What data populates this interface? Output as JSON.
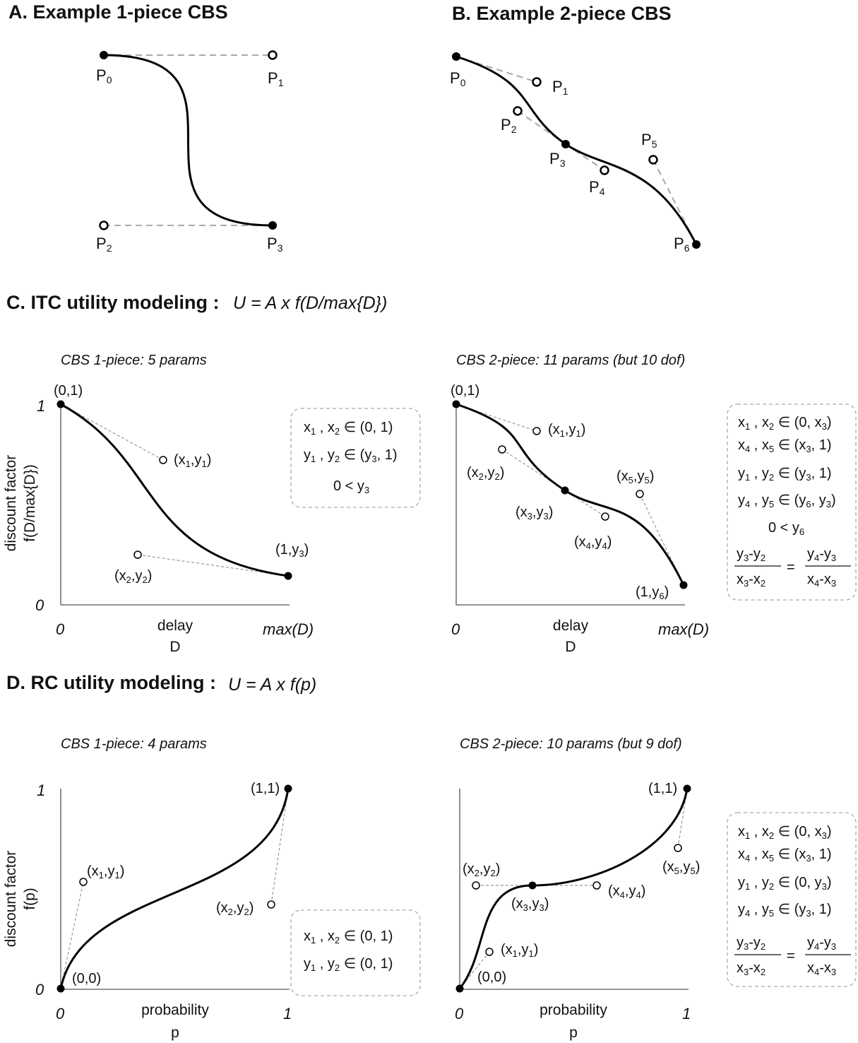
{
  "panelA": {
    "title": "A. Example 1-piece CBS",
    "points": [
      {
        "name": "P0",
        "base": "P",
        "sub": "0"
      },
      {
        "name": "P1",
        "base": "P",
        "sub": "1"
      },
      {
        "name": "P2",
        "base": "P",
        "sub": "2"
      },
      {
        "name": "P3",
        "base": "P",
        "sub": "3"
      }
    ]
  },
  "panelB": {
    "title": "B. Example 2-piece CBS",
    "points": [
      {
        "name": "P0",
        "base": "P",
        "sub": "0"
      },
      {
        "name": "P1",
        "base": "P",
        "sub": "1"
      },
      {
        "name": "P2",
        "base": "P",
        "sub": "2"
      },
      {
        "name": "P3",
        "base": "P",
        "sub": "3"
      },
      {
        "name": "P4",
        "base": "P",
        "sub": "4"
      },
      {
        "name": "P5",
        "base": "P",
        "sub": "5"
      },
      {
        "name": "P6",
        "base": "P",
        "sub": "6"
      }
    ]
  },
  "panelC": {
    "title": "C. ITC utility modeling :",
    "formula": "U = A x f(D/max{D})",
    "ylabel_line1": "discount factor",
    "ylabel_line2": "f(D/max{D})",
    "left": {
      "caption": "CBS 1-piece: 5 params",
      "ytick_top": "1",
      "ytick_bottom": "0",
      "xtick_left": "0",
      "xtick_right": "max(D)",
      "xlabel_line1": "delay",
      "xlabel_line2": "D",
      "labels": {
        "p0": "(0,1)",
        "p1": {
          "o": "(x",
          "s1": "1",
          "m": ",y",
          "s2": "1",
          "c": ")"
        },
        "p2": {
          "o": "(x",
          "s1": "2",
          "m": ",y",
          "s2": "2",
          "c": ")"
        },
        "p3": {
          "o": "(1,y",
          "s2": "3",
          "c": ")"
        }
      },
      "constraints": {
        "line1": {
          "a": "x",
          "as": "1",
          "b": " , x",
          "bs": "2",
          "rest": " ∈ (0, 1)"
        },
        "line2": {
          "a": "y",
          "as": "1",
          "b": " , y",
          "bs": "2",
          "rest": " ∈ (y",
          "rs": "3",
          "end": ", 1)"
        },
        "line3": {
          "a": "0 < y",
          "as": "3"
        }
      }
    },
    "right": {
      "caption": "CBS 2-piece: 11 params (but 10 dof)",
      "xtick_left": "0",
      "xtick_right": "max(D)",
      "xlabel_line1": "delay",
      "xlabel_line2": "D",
      "labels": {
        "p0": "(0,1)",
        "p1": {
          "o": "(x",
          "s1": "1",
          "m": ",y",
          "s2": "1",
          "c": ")"
        },
        "p2": {
          "o": "(x",
          "s1": "2",
          "m": ",y",
          "s2": "2",
          "c": ")"
        },
        "p3": {
          "o": "(x",
          "s1": "3",
          "m": ",y",
          "s2": "3",
          "c": ")"
        },
        "p4": {
          "o": "(x",
          "s1": "4",
          "m": ",y",
          "s2": "4",
          "c": ")"
        },
        "p5": {
          "o": "(x",
          "s1": "5",
          "m": ",y",
          "s2": "5",
          "c": ")"
        },
        "p6": {
          "o": "(1,y",
          "s2": "6",
          "c": ")"
        }
      },
      "constraints": {
        "line1": {
          "a": "x",
          "as": "1",
          "b": " , x",
          "bs": "2",
          "rest": " ∈ (0, x",
          "rs": "3",
          "end": ")"
        },
        "line2": {
          "a": "x",
          "as": "4",
          "b": " , x",
          "bs": "5",
          "rest": " ∈ (x",
          "rs": "3",
          "end": ", 1)"
        },
        "line3": {
          "a": "y",
          "as": "1",
          "b": " , y",
          "bs": "2",
          "rest": " ∈ (y",
          "rs": "3",
          "end": ", 1)"
        },
        "line4": {
          "a": "y",
          "as": "4",
          "b": " , y",
          "bs": "5",
          "rest": " ∈ (y",
          "rs": "6",
          "end": ", y",
          "es": "3",
          "end2": ")"
        },
        "line5": {
          "a": "0 < y",
          "as": "6"
        },
        "frac": {
          "num_l": {
            "a": "y",
            "as": "3",
            "b": "-y",
            "bs": "2"
          },
          "den_l": {
            "a": "x",
            "as": "3",
            "b": "-x",
            "bs": "2"
          },
          "eq": "=",
          "num_r": {
            "a": "y",
            "as": "4",
            "b": "-y",
            "bs": "3"
          },
          "den_r": {
            "a": "x",
            "as": "4",
            "b": "-x",
            "bs": "3"
          }
        }
      }
    }
  },
  "panelD": {
    "title": "D. RC utility modeling :",
    "formula": "U = A x f(p)",
    "ylabel_line1": "discount factor",
    "ylabel_line2": "f(p)",
    "left": {
      "caption": "CBS 1-piece: 4 params",
      "ytick_top": "1",
      "ytick_bottom": "0",
      "xtick_left": "0",
      "xtick_right": "1",
      "xlabel_line1": "probability",
      "xlabel_line2": "p",
      "labels": {
        "p0": "(0,0)",
        "p1": {
          "o": "(x",
          "s1": "1",
          "m": ",y",
          "s2": "1",
          "c": ")"
        },
        "p2": {
          "o": "(x",
          "s1": "2",
          "m": ",y",
          "s2": "2",
          "c": ")"
        },
        "p3": "(1,1)"
      },
      "constraints": {
        "line1": {
          "a": "x",
          "as": "1",
          "b": " , x",
          "bs": "2",
          "rest": " ∈ (0, 1)"
        },
        "line2": {
          "a": "y",
          "as": "1",
          "b": " , y",
          "bs": "2",
          "rest": " ∈ (0, 1)"
        }
      }
    },
    "right": {
      "caption": "CBS 2-piece: 10 params (but 9 dof)",
      "xtick_left": "0",
      "xtick_right": "1",
      "xlabel_line1": "probability",
      "xlabel_line2": "p",
      "labels": {
        "p0": "(0,0)",
        "p1": {
          "o": "(x",
          "s1": "1",
          "m": ",y",
          "s2": "1",
          "c": ")"
        },
        "p2": {
          "o": "(x",
          "s1": "2",
          "m": ",y",
          "s2": "2",
          "c": ")"
        },
        "p3": {
          "o": "(x",
          "s1": "3",
          "m": ",y",
          "s2": "3",
          "c": ")"
        },
        "p4": {
          "o": "(x",
          "s1": "4",
          "m": ",y",
          "s2": "4",
          "c": ")"
        },
        "p5": {
          "o": "(x",
          "s1": "5",
          "m": ",y",
          "s2": "5",
          "c": ")"
        },
        "p6": "(1,1)"
      },
      "constraints": {
        "line1": {
          "a": "x",
          "as": "1",
          "b": " , x",
          "bs": "2",
          "rest": " ∈ (0, x",
          "rs": "3",
          "end": ")"
        },
        "line2": {
          "a": "x",
          "as": "4",
          "b": " , x",
          "bs": "5",
          "rest": " ∈ (x",
          "rs": "3",
          "end": ", 1)"
        },
        "line3": {
          "a": "y",
          "as": "1",
          "b": " , y",
          "bs": "2",
          "rest": " ∈ (0, y",
          "rs": "3",
          "end": ")"
        },
        "line4": {
          "a": "y",
          "as": "4",
          "b": " , y",
          "bs": "5",
          "rest": " ∈ (y",
          "rs": "3",
          "end": ", 1)"
        },
        "frac": {
          "num_l": {
            "a": "y",
            "as": "3",
            "b": "-y",
            "bs": "2"
          },
          "den_l": {
            "a": "x",
            "as": "3",
            "b": "-x",
            "bs": "2"
          },
          "eq": "=",
          "num_r": {
            "a": "y",
            "as": "4",
            "b": "-y",
            "bs": "3"
          },
          "den_r": {
            "a": "x",
            "as": "4",
            "b": "-x",
            "bs": "3"
          }
        }
      }
    }
  }
}
